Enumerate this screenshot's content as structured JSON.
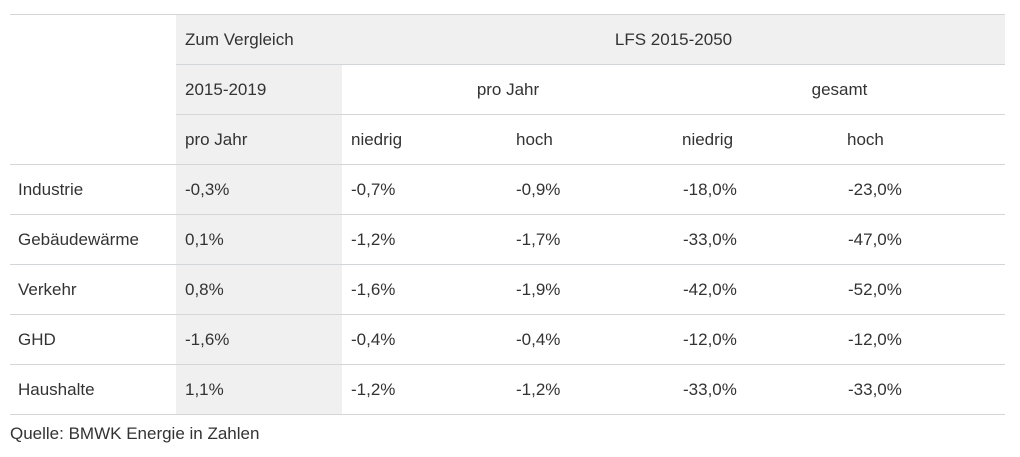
{
  "table": {
    "header_row1": {
      "comparison": "Zum Vergleich",
      "scenario": "LFS 2015-2050"
    },
    "header_row2": {
      "period": "2015-2019",
      "per_year": "pro Jahr",
      "total": "gesamt"
    },
    "header_row3": [
      "pro Jahr",
      "niedrig",
      "hoch",
      "niedrig",
      "hoch"
    ],
    "rows": [
      {
        "sector": "Industrie",
        "values": [
          "-0,3%",
          "-0,7%",
          "-0,9%",
          "-18,0%",
          "-23,0%"
        ]
      },
      {
        "sector": "Gebäudewärme",
        "values": [
          "0,1%",
          "-1,2%",
          "-1,7%",
          "-33,0%",
          "-47,0%"
        ]
      },
      {
        "sector": "Verkehr",
        "values": [
          "0,8%",
          "-1,6%",
          "-1,9%",
          "-42,0%",
          "-52,0%"
        ]
      },
      {
        "sector": "GHD",
        "values": [
          "-1,6%",
          "-0,4%",
          "-0,4%",
          "-12,0%",
          "-12,0%"
        ]
      },
      {
        "sector": "Haushalte",
        "values": [
          "1,1%",
          "-1,2%",
          "-1,2%",
          "-33,0%",
          "-33,0%"
        ]
      }
    ]
  },
  "source": "Quelle: BMWK Energie in Zahlen",
  "colors": {
    "highlight_bg": "#f0f0f0",
    "rule": "#d3d6d8",
    "text": "#333333"
  }
}
